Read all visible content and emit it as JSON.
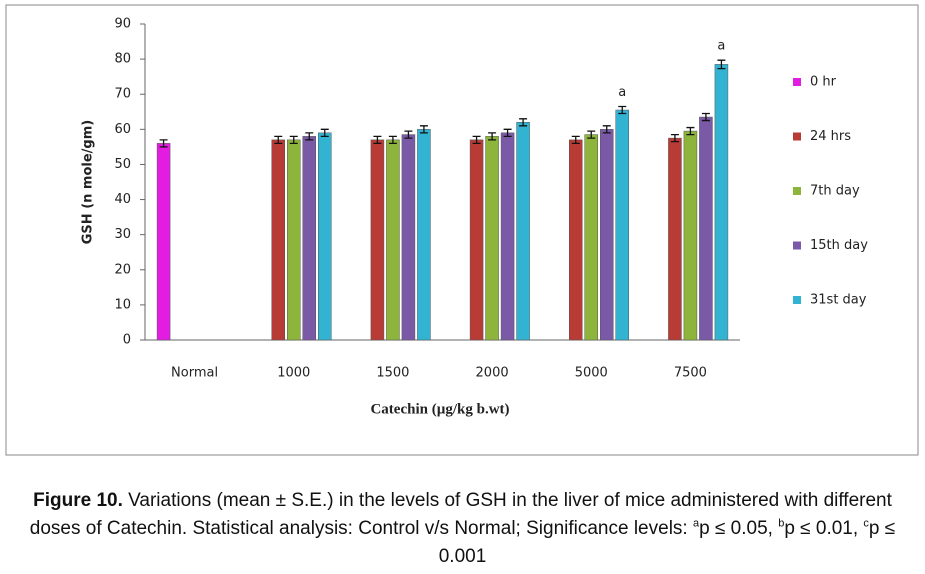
{
  "chart_data": {
    "type": "bar",
    "ylabel": "GSH (n mole/gm)",
    "xlabel": "Catechin (µg/kg b.wt)",
    "categories": [
      "Normal",
      "1000",
      "1500",
      "2000",
      "5000",
      "7500"
    ],
    "ylim": [
      0,
      90
    ],
    "yticks": [
      0,
      10,
      20,
      30,
      40,
      50,
      60,
      70,
      80,
      90
    ],
    "grid": false,
    "legend": "right",
    "series": [
      {
        "name": "0 hr",
        "color": "#e21ce0",
        "values": [
          56,
          null,
          null,
          null,
          null,
          null
        ],
        "errors": [
          1,
          null,
          null,
          null,
          null,
          null
        ]
      },
      {
        "name": "24 hrs",
        "color": "#b83b35",
        "values": [
          null,
          57,
          57,
          57,
          57,
          57.5
        ],
        "errors": [
          null,
          1,
          1,
          1,
          1,
          1
        ]
      },
      {
        "name": "7th day",
        "color": "#8db53c",
        "values": [
          null,
          57,
          57,
          58,
          58.5,
          59.5
        ],
        "errors": [
          null,
          1,
          1,
          1,
          1,
          1
        ]
      },
      {
        "name": "15th day",
        "color": "#7a5aa6",
        "values": [
          null,
          58,
          58.5,
          59,
          60,
          63.5
        ],
        "errors": [
          null,
          1,
          1,
          1,
          1,
          1
        ]
      },
      {
        "name": "31st  day",
        "color": "#33b3d2",
        "values": [
          null,
          59,
          60,
          62,
          65.5,
          78.5
        ],
        "errors": [
          null,
          1,
          1,
          1,
          1,
          1.2
        ],
        "significance": [
          null,
          null,
          null,
          null,
          "a",
          "a"
        ]
      }
    ]
  },
  "caption": {
    "label": "Figure 10.",
    "text": " Variations (mean ± S.E.) in the levels of GSH in the liver of mice administered with different doses of Catechin.  Statistical analysis: Control v/s Normal; Significance levels: ",
    "levels": [
      {
        "sup": "a",
        "text": "p ≤ 0.05, "
      },
      {
        "sup": "b",
        "text": "p ≤ 0.01, "
      },
      {
        "sup": "c",
        "text": "p  ≤ 0.001"
      }
    ]
  }
}
